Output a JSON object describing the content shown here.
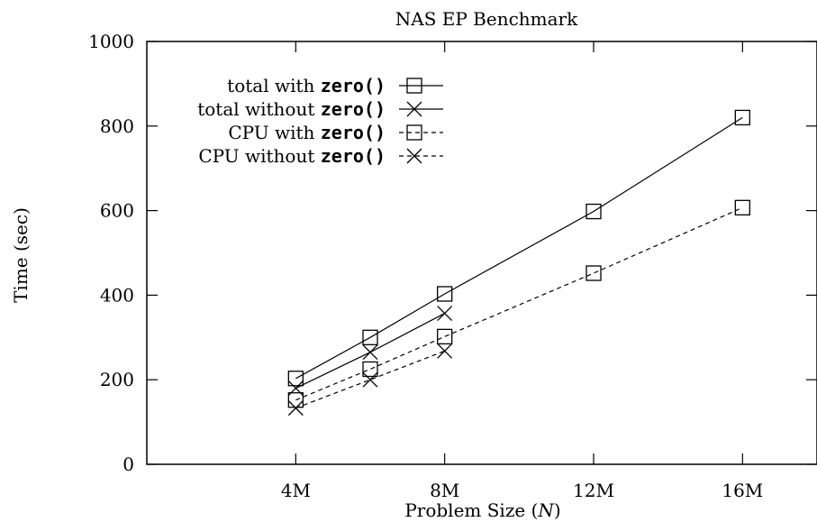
{
  "chart_data": {
    "type": "line",
    "title": "NAS EP Benchmark",
    "xlabel": "Problem Size (",
    "xlabel_var": "N",
    "xlabel_end": ")",
    "ylabel": "Time (sec)",
    "x": [
      4,
      6,
      8,
      12,
      16
    ],
    "xlim": [
      0,
      18
    ],
    "ylim": [
      0,
      1000
    ],
    "xticks": [
      {
        "value": 4,
        "label": "4M"
      },
      {
        "value": 8,
        "label": "8M"
      },
      {
        "value": 12,
        "label": "12M"
      },
      {
        "value": 16,
        "label": "16M"
      }
    ],
    "yticks": [
      {
        "value": 0,
        "label": "0"
      },
      {
        "value": 200,
        "label": "200"
      },
      {
        "value": 400,
        "label": "400"
      },
      {
        "value": 600,
        "label": "600"
      },
      {
        "value": 800,
        "label": "800"
      },
      {
        "value": 1000,
        "label": "1000"
      }
    ],
    "legend_position": "top-left",
    "series": [
      {
        "name": "total with zero()",
        "name_text": "total with ",
        "name_code": "zero()",
        "marker": "square",
        "line": "solid",
        "points": [
          [
            4,
            203
          ],
          [
            6,
            300
          ],
          [
            8,
            403
          ],
          [
            12,
            598
          ],
          [
            16,
            820
          ]
        ]
      },
      {
        "name": "total without zero()",
        "name_text": "total without ",
        "name_code": "zero()",
        "marker": "cross",
        "line": "solid",
        "points": [
          [
            4,
            180
          ],
          [
            6,
            265
          ],
          [
            8,
            357
          ]
        ]
      },
      {
        "name": "CPU with zero()",
        "name_text": "CPU with ",
        "name_code": "zero()",
        "marker": "square",
        "line": "dashed",
        "points": [
          [
            4,
            152
          ],
          [
            6,
            225
          ],
          [
            8,
            302
          ],
          [
            12,
            452
          ],
          [
            16,
            607
          ]
        ]
      },
      {
        "name": "CPU without zero()",
        "name_text": "CPU without ",
        "name_code": "zero()",
        "marker": "cross",
        "line": "dashed",
        "points": [
          [
            4,
            133
          ],
          [
            6,
            200
          ],
          [
            8,
            268
          ]
        ]
      }
    ]
  }
}
